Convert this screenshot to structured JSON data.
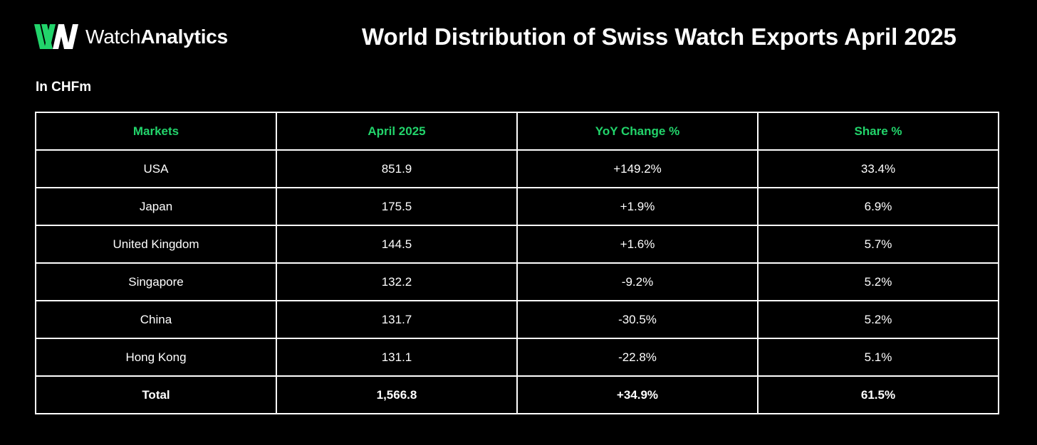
{
  "brand": {
    "name_light": "Watch",
    "name_bold": "Analytics",
    "accent_color": "#22d46b",
    "icon": "double-w-logo-icon"
  },
  "title": "World Distribution of Swiss Watch Exports April 2025",
  "unit_label": "In CHFm",
  "chart_data": {
    "type": "table",
    "title": "World Distribution of Swiss Watch Exports April 2025",
    "subtitle": "In CHFm",
    "columns": [
      "Markets",
      "April 2025",
      "YoY Change %",
      "Share %"
    ],
    "rows": [
      [
        "USA",
        "851.9",
        "+149.2%",
        "33.4%"
      ],
      [
        "Japan",
        "175.5",
        "+1.9%",
        "6.9%"
      ],
      [
        "United Kingdom",
        "144.5",
        "+1.6%",
        "5.7%"
      ],
      [
        "Singapore",
        "132.2",
        "-9.2%",
        "5.2%"
      ],
      [
        "China",
        "131.7",
        "-30.5%",
        "5.2%"
      ],
      [
        "Hong Kong",
        "131.1",
        "-22.8%",
        "5.1%"
      ]
    ],
    "total": [
      "Total",
      "1,566.8",
      "+34.9%",
      "61.5%"
    ]
  }
}
